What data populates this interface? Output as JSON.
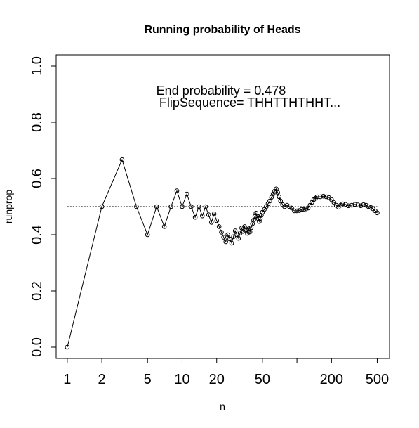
{
  "chart_data": {
    "type": "scatter",
    "title": "Running probability of Heads",
    "xlabel": "n",
    "ylabel": "runprop",
    "x_scale": "log",
    "xlim": [
      0.8,
      640
    ],
    "ylim": [
      -0.04,
      1.04
    ],
    "x_ticks": [
      1,
      2,
      5,
      10,
      20,
      50,
      100,
      200,
      500
    ],
    "x_tick_labels": [
      "1",
      "2",
      "5",
      "10",
      "20",
      "50",
      "",
      "200",
      "500"
    ],
    "y_ticks": [
      0.0,
      0.2,
      0.4,
      0.6,
      0.8,
      1.0
    ],
    "y_tick_labels": [
      "0.0",
      "0.2",
      "0.4",
      "0.6",
      "0.8",
      "1.0"
    ],
    "reference_line": 0.5,
    "annotations": [
      "End probability =  0.478",
      "FlipSequence= THHTTHTHHT..."
    ],
    "series": [
      {
        "values": [
          [
            1,
            0.0
          ],
          [
            2,
            0.5
          ],
          [
            3,
            0.667
          ],
          [
            4,
            0.5
          ],
          [
            5,
            0.4
          ],
          [
            6,
            0.5
          ],
          [
            7,
            0.429
          ],
          [
            8,
            0.5
          ],
          [
            9,
            0.556
          ],
          [
            10,
            0.5
          ],
          [
            11,
            0.545
          ],
          [
            12,
            0.5
          ],
          [
            13,
            0.462
          ],
          [
            14,
            0.5
          ],
          [
            15,
            0.467
          ],
          [
            16,
            0.5
          ],
          [
            17,
            0.471
          ],
          [
            18,
            0.444
          ],
          [
            19,
            0.474
          ],
          [
            20,
            0.45
          ],
          [
            21,
            0.429
          ],
          [
            22,
            0.409
          ],
          [
            23,
            0.391
          ],
          [
            24,
            0.375
          ],
          [
            25,
            0.4
          ],
          [
            26,
            0.385
          ],
          [
            27,
            0.37
          ],
          [
            28,
            0.393
          ],
          [
            29,
            0.414
          ],
          [
            30,
            0.4
          ],
          [
            31,
            0.387
          ],
          [
            32,
            0.406
          ],
          [
            33,
            0.424
          ],
          [
            34,
            0.412
          ],
          [
            35,
            0.429
          ],
          [
            36,
            0.417
          ],
          [
            37,
            0.405
          ],
          [
            38,
            0.421
          ],
          [
            39,
            0.41
          ],
          [
            40,
            0.425
          ],
          [
            41,
            0.439
          ],
          [
            42,
            0.452
          ],
          [
            43,
            0.465
          ],
          [
            44,
            0.477
          ],
          [
            45,
            0.467
          ],
          [
            46,
            0.457
          ],
          [
            47,
            0.447
          ],
          [
            48,
            0.458
          ],
          [
            49,
            0.469
          ],
          [
            50,
            0.48
          ],
          [
            52,
            0.49
          ],
          [
            54,
            0.5
          ],
          [
            56,
            0.51
          ],
          [
            58,
            0.52
          ],
          [
            60,
            0.533
          ],
          [
            62,
            0.545
          ],
          [
            64,
            0.555
          ],
          [
            66,
            0.563
          ],
          [
            68,
            0.55
          ],
          [
            70,
            0.535
          ],
          [
            72,
            0.52
          ],
          [
            75,
            0.507
          ],
          [
            78,
            0.5
          ],
          [
            82,
            0.505
          ],
          [
            86,
            0.5
          ],
          [
            90,
            0.495
          ],
          [
            95,
            0.485
          ],
          [
            100,
            0.485
          ],
          [
            105,
            0.486
          ],
          [
            110,
            0.49
          ],
          [
            115,
            0.49
          ],
          [
            120,
            0.492
          ],
          [
            125,
            0.495
          ],
          [
            130,
            0.505
          ],
          [
            135,
            0.515
          ],
          [
            140,
            0.525
          ],
          [
            145,
            0.53
          ],
          [
            150,
            0.535
          ],
          [
            160,
            0.535
          ],
          [
            170,
            0.537
          ],
          [
            180,
            0.535
          ],
          [
            190,
            0.532
          ],
          [
            200,
            0.525
          ],
          [
            210,
            0.515
          ],
          [
            220,
            0.505
          ],
          [
            230,
            0.498
          ],
          [
            240,
            0.505
          ],
          [
            250,
            0.51
          ],
          [
            265,
            0.508
          ],
          [
            280,
            0.503
          ],
          [
            300,
            0.505
          ],
          [
            320,
            0.508
          ],
          [
            340,
            0.506
          ],
          [
            360,
            0.503
          ],
          [
            380,
            0.507
          ],
          [
            400,
            0.505
          ],
          [
            420,
            0.5
          ],
          [
            440,
            0.497
          ],
          [
            460,
            0.492
          ],
          [
            480,
            0.485
          ],
          [
            500,
            0.478
          ]
        ]
      }
    ]
  }
}
